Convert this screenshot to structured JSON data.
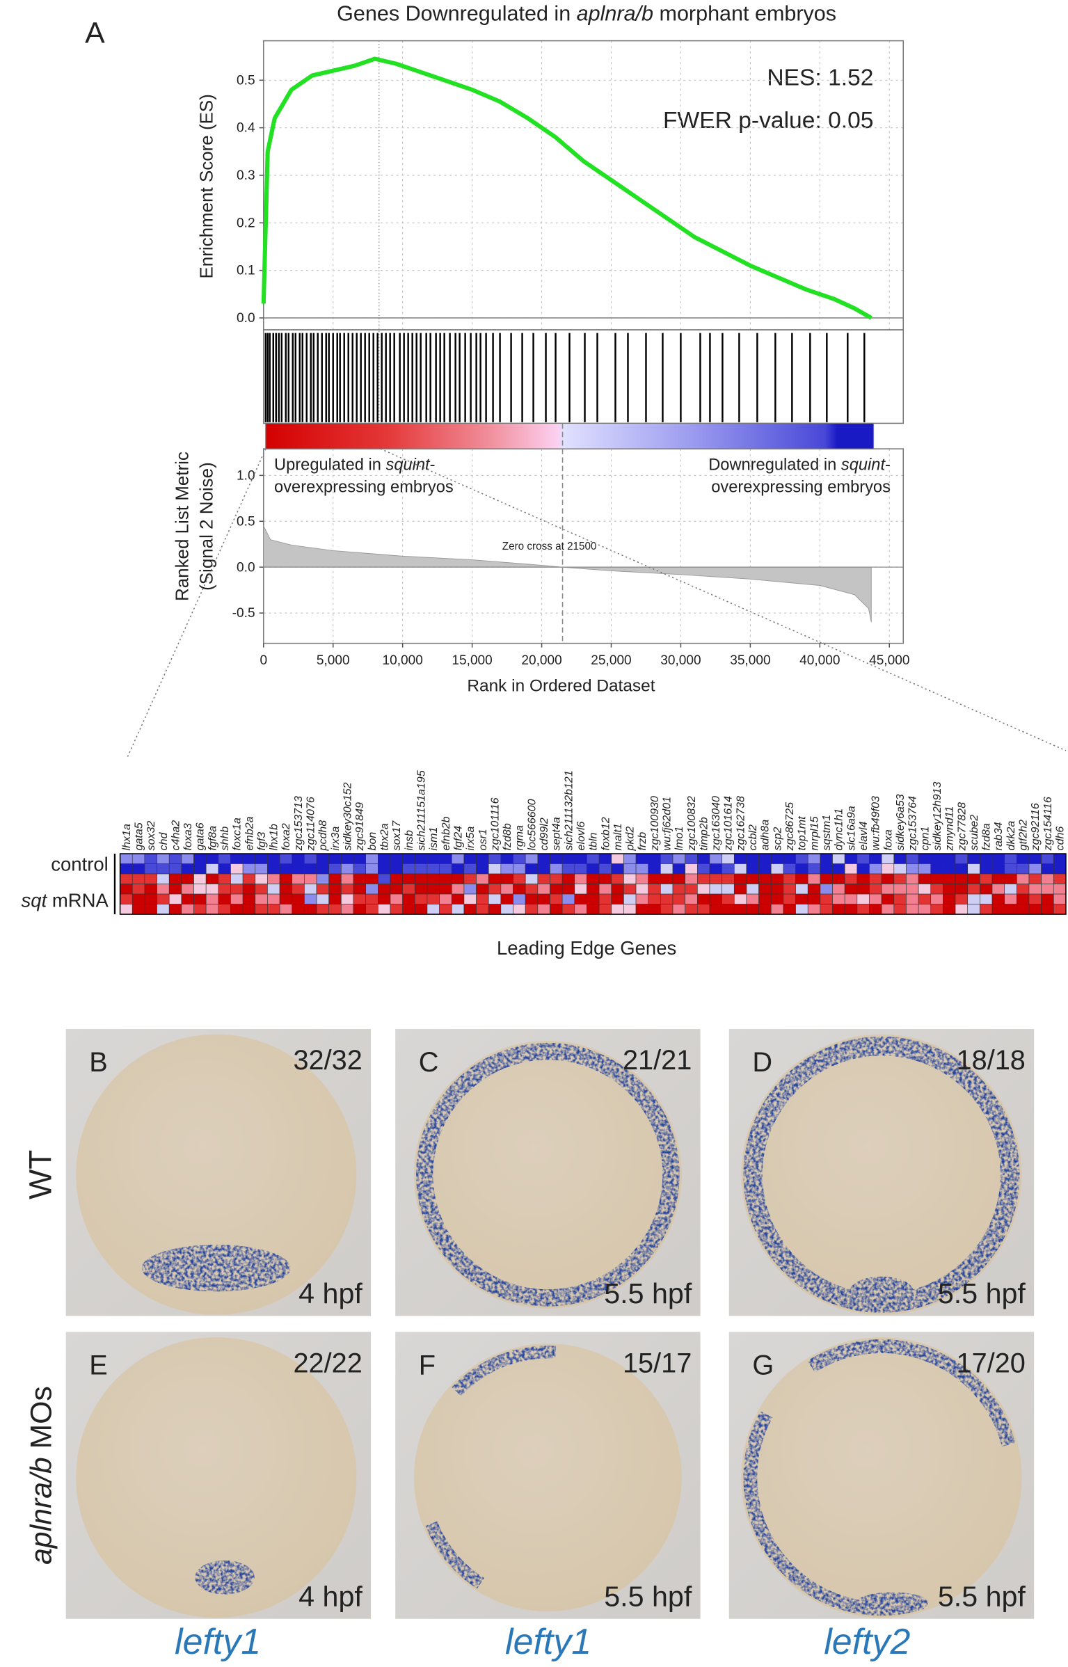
{
  "figure_label": "A",
  "chart_data": {
    "type": "gsea",
    "title": [
      "Genes Downregulated in ",
      "aplnra/b",
      " morphant embryos"
    ],
    "annotations": [
      "NES: 1.52",
      "FWER p-value: 0.05"
    ],
    "ylabel": "Enrichment Score (ES)",
    "xlabel": "Rank in Ordered Dataset",
    "grid": true,
    "xlim": [
      0,
      46000
    ],
    "xticks": [
      0,
      {
        "value": 5000,
        "label": "5,000"
      },
      {
        "value": 10000,
        "label": "10,000"
      },
      {
        "value": 15000,
        "label": "15,000"
      },
      {
        "value": 20000,
        "label": "20,000"
      },
      {
        "value": 25000,
        "label": "25,000"
      },
      {
        "value": 30000,
        "label": "30,000"
      },
      {
        "value": 35000,
        "label": "35,000"
      },
      {
        "value": 40000,
        "label": "40,000"
      },
      {
        "value": 45000,
        "label": "45,000"
      }
    ],
    "ylim": [
      -0.025,
      0.583
    ],
    "yticks": [
      {
        "value": 0,
        "label": "0.0"
      },
      0.1,
      0.2,
      0.3,
      0.4,
      0.5
    ],
    "es": {
      "color": "#22e022",
      "x": [
        0,
        300,
        800,
        2000,
        3500,
        5000,
        6500,
        8000,
        9500,
        11000,
        13000,
        15000,
        17000,
        19000,
        21000,
        23000,
        25000,
        27000,
        29000,
        31000,
        33000,
        35000,
        37000,
        39000,
        41000,
        42500,
        43700
      ],
      "values": [
        0.03,
        0.35,
        0.42,
        0.48,
        0.51,
        0.52,
        0.53,
        0.545,
        0.535,
        0.52,
        0.5,
        0.48,
        0.455,
        0.42,
        0.38,
        0.33,
        0.29,
        0.25,
        0.21,
        0.17,
        0.14,
        0.11,
        0.085,
        0.06,
        0.04,
        0.02,
        0.0
      ]
    },
    "peak_rank": 8300,
    "hits": [
      150,
      300,
      450,
      700,
      900,
      1100,
      1300,
      1600,
      1800,
      2100,
      2300,
      2600,
      2800,
      3100,
      3400,
      3600,
      3900,
      4200,
      4500,
      4700,
      5000,
      5300,
      5500,
      5800,
      6100,
      6400,
      6700,
      7000,
      7300,
      7600,
      7900,
      8200,
      8500,
      8800,
      9100,
      9400,
      9800,
      10100,
      10400,
      10700,
      11000,
      11300,
      11700,
      12000,
      12400,
      12700,
      13000,
      13400,
      13800,
      14100,
      14500,
      14900,
      15300,
      15600,
      16000,
      16500,
      17000,
      17800,
      18600,
      19400,
      20300,
      21000,
      22000,
      23100,
      24000,
      25300,
      26200,
      27500,
      28700,
      30000,
      31400,
      32100,
      33000,
      34200,
      35500,
      36800,
      38000,
      39300,
      40500,
      42000,
      43200
    ],
    "up_label": [
      [
        "Upregulated in ",
        "squint",
        "-"
      ],
      [
        "overexpressing embryos"
      ]
    ],
    "down_label": [
      [
        "Downregulated in ",
        "squint",
        "-"
      ],
      [
        "overexpressing embryos"
      ]
    ],
    "metric": {
      "ylabel": [
        "Ranked List Metric",
        "(Signal 2 Noise)"
      ],
      "ylim": [
        -0.83,
        1.29
      ],
      "yticks": [
        {
          "value": 1,
          "label": "1.0"
        },
        0.5,
        {
          "value": 0,
          "label": "0.0"
        },
        -0.5
      ],
      "color": "#c4c4c4",
      "x": [
        0,
        500,
        2000,
        5000,
        10000,
        15000,
        20000,
        21500,
        25000,
        30000,
        35000,
        40000,
        42500,
        43500,
        43700
      ],
      "values": [
        0.45,
        0.3,
        0.24,
        0.18,
        0.12,
        0.08,
        0.02,
        0,
        -0.04,
        -0.08,
        -0.13,
        -0.2,
        -0.3,
        -0.45,
        -0.6
      ]
    },
    "zero_cross": {
      "value": 21500,
      "label": "Zero cross at 21500"
    }
  },
  "heatmap": {
    "genes": [
      "lhx1a",
      "gata5",
      "sox32",
      "chd",
      "c4ha2",
      "foxa3",
      "gata6",
      "fgf8a",
      "shhb",
      "foxc1a",
      "efnb2a",
      "fgf3",
      "lhx1b",
      "foxa2",
      "zgc153713",
      "zgc114076",
      "pcdh8",
      "irx3a",
      "sidkey30c152",
      "zgc91849",
      "bon",
      "tbx2a",
      "sox17",
      "insb",
      "sich211151a195",
      "ism1",
      "efnb2b",
      "fgf24",
      "irx5a",
      "osr1",
      "zgc101116",
      "fzd8b",
      "rgma",
      "loc566600",
      "cd99l2",
      "sept4a",
      "sich211132b121",
      "elovl6",
      "tbln",
      "foxb12",
      "malt1",
      "pkd2",
      "frzb",
      "zgc100930",
      "wu:fj62d01",
      "lmo1",
      "zgc100832",
      "timp2b",
      "zgc163040",
      "zgc101614",
      "zgc162738",
      "ccbl2",
      "adh8a",
      "scp2",
      "zgc86725",
      "top1mt",
      "mrpl15",
      "sqstm1",
      "dync1h1",
      "slc16a9a",
      "elavl4",
      "wu:fb49f03",
      "foxa",
      "sidkey6a53",
      "zgc153764",
      "cpn1",
      "sidkey12h913",
      "zmynd11",
      "zgc77828",
      "scube2",
      "fzd8a",
      "rab34",
      "dkk2a",
      "gtf2h2",
      "zgc92116",
      "zgc154116",
      "cdh6"
    ],
    "rows": [
      [
        "control"
      ],
      [
        "sqt",
        " mRNA"
      ]
    ],
    "xlabel": "Leading Edge Genes"
  },
  "panels": [
    {
      "label": "B",
      "count": "32/32",
      "stage": "4 hpf"
    },
    {
      "label": "C",
      "count": "21/21",
      "stage": "5.5 hpf"
    },
    {
      "label": "D",
      "count": "18/18",
      "stage": "5.5 hpf"
    },
    {
      "label": "E",
      "count": "22/22",
      "stage": "4 hpf"
    },
    {
      "label": "F",
      "count": "15/17",
      "stage": "5.5 hpf"
    },
    {
      "label": "G",
      "count": "17/20",
      "stage": "5.5 hpf"
    }
  ],
  "row_labels": [
    [
      "WT"
    ],
    [
      "aplnra/b",
      " MOs"
    ]
  ],
  "probes": [
    "lefty1",
    "lefty1",
    "lefty2"
  ]
}
